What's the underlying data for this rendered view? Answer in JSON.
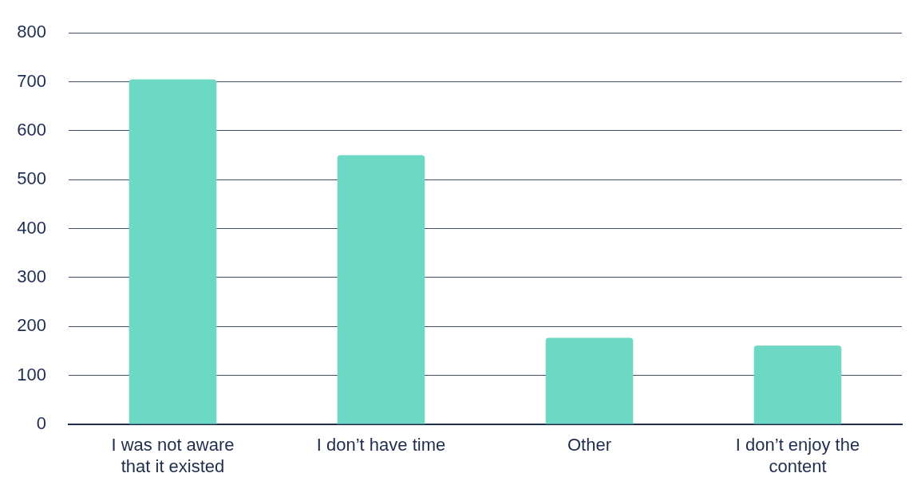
{
  "chart_data": {
    "type": "bar",
    "categories": [
      "I was not aware that it existed",
      "I don’t have time",
      "Other",
      "I don’t enjoy the content"
    ],
    "values": [
      705,
      550,
      177,
      161
    ],
    "color": "#6dd8c4",
    "ylim": [
      0,
      800
    ],
    "yticks": [
      0,
      100,
      200,
      300,
      400,
      500,
      600,
      700,
      800
    ],
    "grid": "y"
  }
}
